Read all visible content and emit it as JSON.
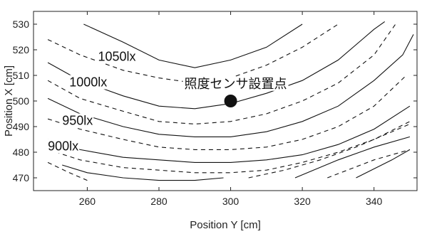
{
  "chart_data": {
    "type": "line",
    "title": "",
    "xlabel": "Position Y [cm]",
    "ylabel": "Position X [cm]",
    "xlim": [
      245,
      352
    ],
    "ylim": [
      465,
      535
    ],
    "xticks": [
      260,
      280,
      300,
      320,
      340
    ],
    "yticks": [
      470,
      480,
      490,
      500,
      510,
      520,
      530
    ],
    "grid": false,
    "series": [
      {
        "style": "solid",
        "points": [
          [
            259,
            530
          ],
          [
            270,
            523
          ],
          [
            280,
            516
          ],
          [
            290,
            513
          ],
          [
            300,
            516
          ],
          [
            310,
            521
          ],
          [
            320,
            530
          ]
        ]
      },
      {
        "style": "dashed",
        "points": [
          [
            249,
            524
          ],
          [
            258,
            518
          ],
          [
            270,
            512
          ],
          [
            280,
            509
          ],
          [
            290,
            507
          ],
          [
            300,
            509
          ],
          [
            310,
            514
          ],
          [
            320,
            521
          ],
          [
            330,
            530
          ]
        ]
      },
      {
        "style": "solid",
        "points": [
          [
            249,
            515
          ],
          [
            258,
            508
          ],
          [
            270,
            502
          ],
          [
            280,
            498
          ],
          [
            290,
            497
          ],
          [
            300,
            499
          ],
          [
            310,
            503
          ],
          [
            320,
            508
          ],
          [
            330,
            516
          ],
          [
            340,
            528
          ],
          [
            343,
            531
          ]
        ]
      },
      {
        "style": "dashed",
        "points": [
          [
            249,
            508
          ],
          [
            258,
            501
          ],
          [
            270,
            496
          ],
          [
            280,
            492
          ],
          [
            290,
            491
          ],
          [
            300,
            492
          ],
          [
            310,
            495
          ],
          [
            320,
            500
          ],
          [
            330,
            507
          ],
          [
            340,
            518
          ],
          [
            346,
            530
          ]
        ]
      },
      {
        "style": "solid",
        "points": [
          [
            249,
            501
          ],
          [
            258,
            495
          ],
          [
            270,
            490
          ],
          [
            280,
            487
          ],
          [
            290,
            486
          ],
          [
            300,
            486
          ],
          [
            310,
            488
          ],
          [
            320,
            492
          ],
          [
            330,
            498
          ],
          [
            340,
            508
          ],
          [
            348,
            518
          ],
          [
            351,
            526
          ]
        ]
      },
      {
        "style": "dashed",
        "points": [
          [
            249,
            493
          ],
          [
            258,
            489
          ],
          [
            270,
            485
          ],
          [
            280,
            482
          ],
          [
            290,
            481
          ],
          [
            300,
            481
          ],
          [
            310,
            482
          ],
          [
            320,
            485
          ],
          [
            330,
            490
          ],
          [
            340,
            498
          ],
          [
            349,
            510
          ]
        ]
      },
      {
        "style": "solid",
        "points": [
          [
            249,
            485
          ],
          [
            258,
            481
          ],
          [
            270,
            478
          ],
          [
            280,
            477
          ],
          [
            290,
            476
          ],
          [
            300,
            476
          ],
          [
            310,
            477
          ],
          [
            320,
            479
          ],
          [
            330,
            483
          ],
          [
            340,
            489
          ],
          [
            350,
            498
          ]
        ]
      },
      {
        "style": "dashed",
        "points": [
          [
            249,
            481
          ],
          [
            258,
            477
          ],
          [
            270,
            474
          ],
          [
            280,
            473
          ],
          [
            290,
            472
          ],
          [
            300,
            472
          ],
          [
            310,
            473
          ],
          [
            320,
            476
          ],
          [
            330,
            480
          ],
          [
            340,
            485
          ],
          [
            350,
            492
          ]
        ]
      },
      {
        "style": "solid",
        "points": [
          [
            253,
            475
          ],
          [
            260,
            472
          ],
          [
            270,
            470
          ],
          [
            280,
            469
          ],
          [
            290,
            469
          ],
          [
            298,
            470
          ]
        ]
      },
      {
        "style": "dashed",
        "points": [
          [
            305,
            470
          ],
          [
            315,
            473
          ],
          [
            325,
            477
          ],
          [
            335,
            482
          ],
          [
            345,
            488
          ],
          [
            350,
            491
          ]
        ]
      },
      {
        "style": "dashed",
        "points": [
          [
            249,
            476
          ],
          [
            255,
            472
          ],
          [
            260,
            469
          ]
        ]
      },
      {
        "style": "solid",
        "points": [
          [
            318,
            470
          ],
          [
            330,
            477
          ],
          [
            340,
            482
          ],
          [
            350,
            486
          ]
        ]
      },
      {
        "style": "dashed",
        "points": [
          [
            327,
            470
          ],
          [
            340,
            477
          ],
          [
            350,
            481
          ]
        ]
      },
      {
        "style": "solid",
        "points": [
          [
            335,
            470
          ],
          [
            345,
            477
          ],
          [
            350,
            481
          ]
        ]
      }
    ],
    "contour_labels": [
      {
        "text": "1050lx",
        "x": 263,
        "y": 517
      },
      {
        "text": "1000lx",
        "x": 255,
        "y": 507
      },
      {
        "text": "950lx",
        "x": 253,
        "y": 492
      },
      {
        "text": "900lx",
        "x": 249,
        "y": 482
      }
    ],
    "annotation": {
      "text": "照度センサ設置点",
      "x": 300,
      "y": 500
    }
  }
}
